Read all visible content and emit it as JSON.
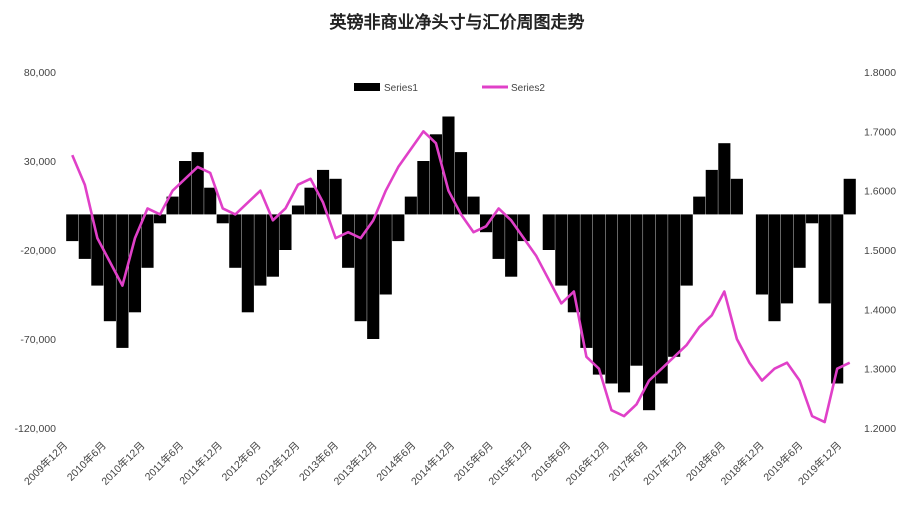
{
  "chart_data": {
    "type": "bar",
    "title": "英镑非商业净头寸与汇价周图走势",
    "legend": {
      "position": "top-center",
      "items": [
        "Series1",
        "Series2"
      ]
    },
    "colors": {
      "series1": "#000000",
      "series2": "#e040c8"
    },
    "x_axis": {
      "tick_labels": [
        "2009年12月",
        "2010年6月",
        "2010年12月",
        "2011年6月",
        "2011年12月",
        "2012年6月",
        "2012年12月",
        "2013年6月",
        "2013年12月",
        "2014年6月",
        "2014年12月",
        "2015年6月",
        "2015年12月",
        "2016年6月",
        "2016年12月",
        "2017年6月",
        "2017年12月",
        "2018年6月",
        "2018年12月",
        "2019年6月",
        "2019年12月"
      ]
    },
    "y_left": {
      "range": [
        -120000,
        80000
      ],
      "ticks": [
        -120000,
        -70000,
        -20000,
        30000,
        80000
      ],
      "tick_labels": [
        "-120,000",
        "-70,000",
        "-20,000",
        "30,000",
        "80,000"
      ]
    },
    "y_right": {
      "range": [
        1.2,
        1.8
      ],
      "ticks": [
        1.2,
        1.3,
        1.4,
        1.5,
        1.6,
        1.7,
        1.8
      ],
      "tick_labels": [
        "1.2000",
        "1.3000",
        "1.4000",
        "1.5000",
        "1.6000",
        "1.7000",
        "1.8000"
      ]
    },
    "x": [
      "2009-10",
      "2009-12",
      "2010-02",
      "2010-04",
      "2010-06",
      "2010-08",
      "2010-10",
      "2010-12",
      "2011-02",
      "2011-04",
      "2011-06",
      "2011-08",
      "2011-10",
      "2011-12",
      "2012-02",
      "2012-04",
      "2012-06",
      "2012-08",
      "2012-10",
      "2012-12",
      "2013-02",
      "2013-04",
      "2013-06",
      "2013-08",
      "2013-10",
      "2013-12",
      "2014-02",
      "2014-04",
      "2014-06",
      "2014-08",
      "2014-10",
      "2014-12",
      "2015-02",
      "2015-04",
      "2015-06",
      "2015-08",
      "2015-10",
      "2015-12",
      "2016-02",
      "2016-04",
      "2016-06",
      "2016-08",
      "2016-10",
      "2016-12",
      "2017-02",
      "2017-04",
      "2017-06",
      "2017-08",
      "2017-10",
      "2017-12",
      "2018-02",
      "2018-04",
      "2018-06",
      "2018-08",
      "2018-10",
      "2018-12",
      "2019-02",
      "2019-04",
      "2019-06",
      "2019-08",
      "2019-10",
      "2019-12",
      "2020-02"
    ],
    "series": [
      {
        "name": "Series1",
        "kind": "bar",
        "axis": "left",
        "values": [
          -15000,
          -25000,
          -40000,
          -60000,
          -75000,
          -55000,
          -30000,
          -5000,
          10000,
          30000,
          35000,
          15000,
          -5000,
          -30000,
          -55000,
          -40000,
          -35000,
          -20000,
          5000,
          15000,
          25000,
          20000,
          -30000,
          -60000,
          -70000,
          -45000,
          -15000,
          10000,
          30000,
          45000,
          55000,
          35000,
          10000,
          -10000,
          -25000,
          -35000,
          -15000,
          0,
          -20000,
          -40000,
          -55000,
          -75000,
          -90000,
          -95000,
          -100000,
          -85000,
          -110000,
          -95000,
          -80000,
          -40000,
          10000,
          25000,
          40000,
          20000,
          0,
          -45000,
          -60000,
          -50000,
          -30000,
          -5000,
          -50000,
          -95000,
          20000
        ]
      },
      {
        "name": "Series2",
        "kind": "line",
        "axis": "right",
        "values": [
          1.66,
          1.61,
          1.52,
          1.48,
          1.44,
          1.52,
          1.57,
          1.56,
          1.6,
          1.62,
          1.64,
          1.63,
          1.57,
          1.56,
          1.58,
          1.6,
          1.55,
          1.57,
          1.61,
          1.62,
          1.58,
          1.52,
          1.53,
          1.52,
          1.55,
          1.6,
          1.64,
          1.67,
          1.7,
          1.68,
          1.6,
          1.56,
          1.53,
          1.54,
          1.57,
          1.55,
          1.52,
          1.49,
          1.45,
          1.41,
          1.43,
          1.32,
          1.3,
          1.23,
          1.22,
          1.24,
          1.28,
          1.3,
          1.32,
          1.34,
          1.37,
          1.39,
          1.43,
          1.35,
          1.31,
          1.28,
          1.3,
          1.31,
          1.28,
          1.22,
          1.21,
          1.3,
          1.31
        ]
      }
    ]
  }
}
